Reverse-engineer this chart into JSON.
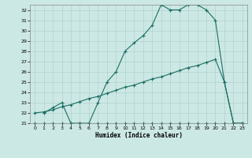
{
  "bg_color": "#cce8e4",
  "grid_color": "#aaccca",
  "line_color": "#1a6e64",
  "xlabel": "Humidex (Indice chaleur)",
  "xlim": [
    -0.5,
    23.5
  ],
  "ylim": [
    21,
    32.5
  ],
  "yticks": [
    21,
    22,
    23,
    24,
    25,
    26,
    27,
    28,
    29,
    30,
    31,
    32
  ],
  "xticks": [
    0,
    1,
    2,
    3,
    4,
    5,
    6,
    7,
    8,
    9,
    10,
    11,
    12,
    13,
    14,
    15,
    16,
    17,
    18,
    19,
    20,
    21,
    22,
    23
  ],
  "line_flat": {
    "x": [
      0,
      1,
      2,
      3,
      4,
      5,
      6,
      7,
      8,
      9,
      10,
      11,
      12,
      13,
      14,
      15,
      16,
      17,
      18,
      19,
      20,
      21,
      22,
      23
    ],
    "y": [
      21,
      21,
      21,
      21,
      21,
      21,
      21,
      21,
      21,
      21,
      21,
      21,
      21,
      21,
      21,
      21,
      21,
      21,
      21,
      21,
      21,
      21,
      21,
      21
    ]
  },
  "line_diag": {
    "x": [
      0,
      1,
      2,
      3,
      4,
      5,
      6,
      7,
      8,
      9,
      10,
      11,
      12,
      13,
      14,
      15,
      16,
      17,
      18,
      19,
      20,
      21,
      22,
      23
    ],
    "y": [
      22,
      22.1,
      22.3,
      22.6,
      22.8,
      23.1,
      23.4,
      23.6,
      23.9,
      24.2,
      24.5,
      24.7,
      25.0,
      25.3,
      25.5,
      25.8,
      26.1,
      26.4,
      26.6,
      26.9,
      27.2,
      25.0,
      21.0,
      21.0
    ]
  },
  "line_peak": {
    "x": [
      1,
      2,
      3,
      4,
      5,
      6,
      7,
      8,
      9,
      10,
      11,
      12,
      13,
      14,
      15,
      16,
      17,
      18,
      19,
      20,
      21,
      22,
      23
    ],
    "y": [
      22,
      22.5,
      23.0,
      21.0,
      21.0,
      21.0,
      23.0,
      25.0,
      26.0,
      28.0,
      28.8,
      29.5,
      30.5,
      32.5,
      32.0,
      32.0,
      32.5,
      32.5,
      32.0,
      31.0,
      25.0,
      21.0,
      21.0
    ]
  }
}
